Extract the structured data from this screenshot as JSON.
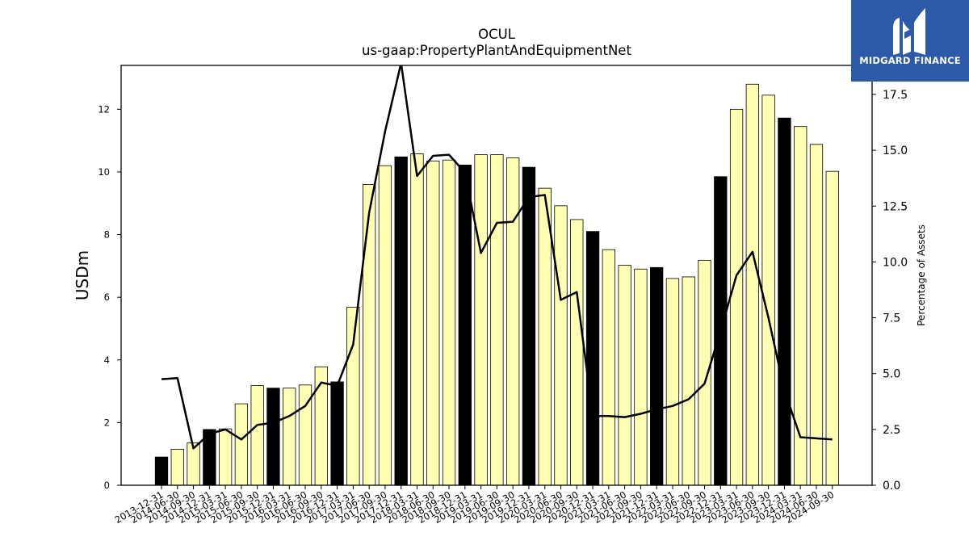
{
  "logo": {
    "text": "MIDGARD FINANCE",
    "icon": "midgard-logo-icon",
    "background": "#2c5aa8"
  },
  "chart_data": {
    "type": "bar",
    "title": "OCUL",
    "subtitle": "us-gaap:PropertyPlantAndEquipmentNet",
    "ylabel": "USDm",
    "y2label": "Percentage of Assets",
    "ylim": [
      0,
      13.4
    ],
    "y2lim": [
      0,
      18.8
    ],
    "yticks": [
      0,
      2,
      4,
      6,
      8,
      10,
      12
    ],
    "y2ticks": [
      "0.0",
      "2.5",
      "5.0",
      "7.5",
      "10.0",
      "12.5",
      "15.0",
      "17.5"
    ],
    "categories": [
      "2013-12-31",
      "2014-06-30",
      "2014-09-30",
      "2014-12-31",
      "2015-03-31",
      "2015-06-30",
      "2015-09-30",
      "2015-12-31",
      "2016-03-31",
      "2016-06-30",
      "2016-09-30",
      "2016-12-31",
      "2017-03-31",
      "2017-06-30",
      "2017-09-30",
      "2017-12-31",
      "2018-03-31",
      "2018-06-30",
      "2018-09-30",
      "2018-12-31",
      "2019-03-31",
      "2019-06-30",
      "2019-09-30",
      "2019-12-31",
      "2020-03-31",
      "2020-06-30",
      "2020-09-30",
      "2020-12-31",
      "2021-03-31",
      "2021-06-30",
      "2021-09-30",
      "2021-12-31",
      "2022-03-31",
      "2022-06-30",
      "2022-09-30",
      "2022-12-31",
      "2023-03-31",
      "2023-06-30",
      "2023-09-30",
      "2023-12-31",
      "2024-03-31",
      "2024-06-30",
      "2024-09-30"
    ],
    "series": [
      {
        "type": "bar",
        "axis": "left",
        "values": [
          0.9,
          1.15,
          1.35,
          1.78,
          1.8,
          2.6,
          3.18,
          3.1,
          3.1,
          3.2,
          3.78,
          3.3,
          5.68,
          9.6,
          10.2,
          10.48,
          10.58,
          10.35,
          10.38,
          10.22,
          10.55,
          10.55,
          10.45,
          10.15,
          9.48,
          8.92,
          8.48,
          8.1,
          7.52,
          7.02,
          6.9,
          6.95,
          6.6,
          6.65,
          7.18,
          9.85,
          12.0,
          12.8,
          12.45,
          11.72,
          11.45,
          10.88,
          10.02
        ]
      },
      {
        "type": "line",
        "axis": "right",
        "values": [
          4.75,
          4.8,
          1.65,
          2.3,
          2.5,
          2.05,
          2.7,
          2.8,
          3.1,
          3.55,
          4.6,
          4.45,
          6.3,
          12.2,
          15.85,
          18.9,
          13.85,
          14.75,
          14.8,
          14.0,
          10.4,
          11.75,
          11.8,
          12.9,
          13.0,
          8.3,
          8.65,
          3.1,
          3.1,
          3.05,
          3.2,
          3.4,
          3.55,
          3.85,
          4.55,
          6.9,
          9.4,
          10.45,
          7.5,
          4.25,
          2.15,
          2.1,
          2.05
        ]
      }
    ],
    "colors": {
      "bar_regular": "#ffffb4",
      "bar_year_end": "#000000",
      "bar_edge": "#000000",
      "line": "#000000"
    },
    "year_end_marker": "12-31",
    "grid": false,
    "legend": "none"
  }
}
